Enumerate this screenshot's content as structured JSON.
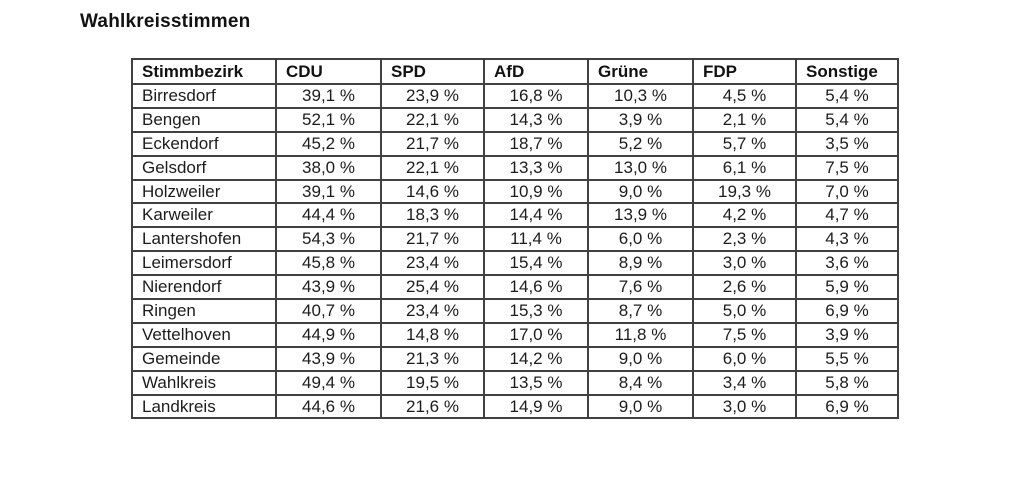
{
  "page": {
    "title": "Wahlkreisstimmen"
  },
  "table": {
    "columns": [
      "Stimmbezirk",
      "CDU",
      "SPD",
      "AfD",
      "Grüne",
      "FDP",
      "Sonstige"
    ],
    "rows": [
      {
        "name": "Birresdorf",
        "values": [
          "39,1 %",
          "23,9 %",
          "16,8 %",
          "10,3 %",
          "4,5 %",
          "5,4 %"
        ]
      },
      {
        "name": "Bengen",
        "values": [
          "52,1 %",
          "22,1 %",
          "14,3 %",
          "3,9 %",
          "2,1 %",
          "5,4 %"
        ]
      },
      {
        "name": "Eckendorf",
        "values": [
          "45,2 %",
          "21,7 %",
          "18,7 %",
          "5,2 %",
          "5,7 %",
          "3,5 %"
        ]
      },
      {
        "name": "Gelsdorf",
        "values": [
          "38,0 %",
          "22,1 %",
          "13,3 %",
          "13,0 %",
          "6,1 %",
          "7,5 %"
        ]
      },
      {
        "name": "Holzweiler",
        "values": [
          "39,1 %",
          "14,6 %",
          "10,9 %",
          "9,0 %",
          "19,3 %",
          "7,0 %"
        ]
      },
      {
        "name": "Karweiler",
        "values": [
          "44,4 %",
          "18,3 %",
          "14,4 %",
          "13,9 %",
          "4,2 %",
          "4,7 %"
        ]
      },
      {
        "name": "Lantershofen",
        "values": [
          "54,3 %",
          "21,7 %",
          "11,4 %",
          "6,0 %",
          "2,3 %",
          "4,3 %"
        ]
      },
      {
        "name": "Leimersdorf",
        "values": [
          "45,8 %",
          "23,4 %",
          "15,4 %",
          "8,9 %",
          "3,0 %",
          "3,6 %"
        ]
      },
      {
        "name": "Nierendorf",
        "values": [
          "43,9 %",
          "25,4 %",
          "14,6 %",
          "7,6 %",
          "2,6 %",
          "5,9 %"
        ]
      },
      {
        "name": "Ringen",
        "values": [
          "40,7 %",
          "23,4 %",
          "15,3 %",
          "8,7 %",
          "5,0 %",
          "6,9 %"
        ]
      },
      {
        "name": "Vettelhoven",
        "values": [
          "44,9 %",
          "14,8 %",
          "17,0 %",
          "11,8 %",
          "7,5 %",
          "3,9 %"
        ]
      },
      {
        "name": "Gemeinde",
        "values": [
          "43,9 %",
          "21,3 %",
          "14,2 %",
          "9,0 %",
          "6,0 %",
          "5,5 %"
        ]
      },
      {
        "name": "Wahlkreis",
        "values": [
          "49,4 %",
          "19,5 %",
          "13,5 %",
          "8,4 %",
          "3,4 %",
          "5,8 %"
        ]
      },
      {
        "name": "Landkreis",
        "values": [
          "44,6 %",
          "21,6 %",
          "14,9 %",
          "9,0 %",
          "3,0 %",
          "6,9 %"
        ]
      }
    ]
  }
}
